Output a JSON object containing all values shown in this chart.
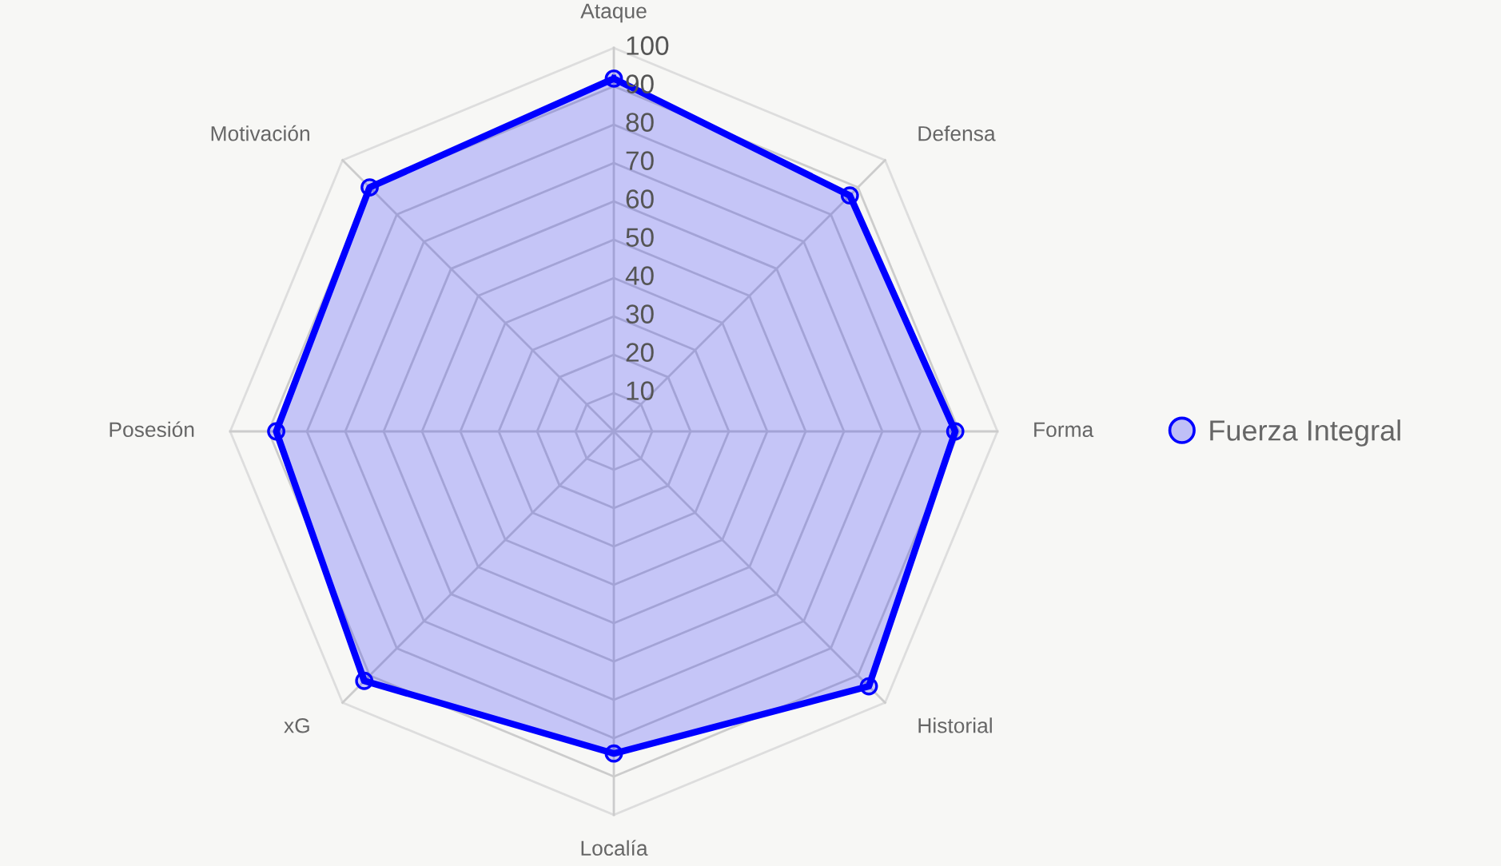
{
  "chart_data": {
    "type": "radar",
    "categories": [
      "Ataque",
      "Defensa",
      "Forma",
      "Historial",
      "Localía",
      "xG",
      "Posesión",
      "Motivación"
    ],
    "series": [
      {
        "name": "Fuerza Integral",
        "color": "#0000ff",
        "values": [
          92,
          87,
          89,
          94,
          84,
          92,
          88,
          90
        ]
      }
    ],
    "ylim": [
      0,
      100
    ],
    "yticks": [
      10,
      20,
      30,
      40,
      50,
      60,
      70,
      80,
      90,
      100
    ],
    "grid": true,
    "legend": "right",
    "marker": "circle",
    "line_style": "solid"
  }
}
